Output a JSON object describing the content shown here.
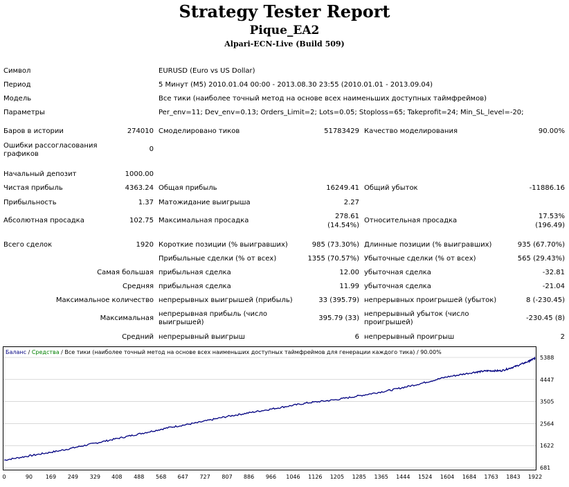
{
  "header": {
    "title": "Strategy Tester Report",
    "ea": "Pique_EA2",
    "server": "Alpari-ECN-Live (Build 509)"
  },
  "info": {
    "symbol_label": "Символ",
    "symbol_value": "EURUSD (Euro vs US Dollar)",
    "period_label": "Период",
    "period_value": "5 Минут (M5) 2010.01.04 00:00 - 2013.08.30 23:55 (2010.01.01 - 2013.09.04)",
    "model_label": "Модель",
    "model_value": "Все тики (наиболее точный метод на основе всех наименьших доступных таймфреймов)",
    "params_label": "Параметры",
    "params_value": "Per_env=11; Dev_env=0.13; Orders_Limit=2; Lots=0.05; Stoploss=65; Takeprofit=24; Min_SL_level=-20;"
  },
  "stats": {
    "bars_label": "Баров в истории",
    "bars_value": "274010",
    "ticks_label": "Смоделировано тиков",
    "ticks_value": "51783429",
    "quality_label": "Качество моделирования",
    "quality_value": "90.00%",
    "mismatch_label": "Ошибки рассогласования графиков",
    "mismatch_value": "0",
    "deposit_label": "Начальный депозит",
    "deposit_value": "1000.00",
    "net_label": "Чистая прибыль",
    "net_value": "4363.24",
    "gross_profit_label": "Общая прибыль",
    "gross_profit_value": "16249.41",
    "gross_loss_label": "Общий убыток",
    "gross_loss_value": "-11886.16",
    "pf_label": "Прибыльность",
    "pf_value": "1.37",
    "payoff_label": "Матожидание выигрыша",
    "payoff_value": "2.27",
    "abs_dd_label": "Абсолютная просадка",
    "abs_dd_value": "102.75",
    "max_dd_label": "Максимальная просадка",
    "max_dd_value1": "278.61",
    "max_dd_value2": "(14.54%)",
    "rel_dd_label": "Относительная просадка",
    "rel_dd_value1": "17.53%",
    "rel_dd_value2": "(196.49)",
    "total_label": "Всего сделок",
    "total_value": "1920",
    "short_label": "Короткие позиции (% выигравших)",
    "short_value": "985 (73.30%)",
    "long_label": "Длинные позиции (% выигравших)",
    "long_value": "935 (67.70%)",
    "profit_trades_label": "Прибыльные сделки (% от всех)",
    "profit_trades_value": "1355 (70.57%)",
    "loss_trades_label": "Убыточные сделки (% от всех)",
    "loss_trades_value": "565 (29.43%)",
    "largest_label": "Самая большая",
    "avg_label": "Средняя",
    "max_count_label": "Максимальное количество",
    "maximal_label": "Максимальная",
    "average_label": "Средний",
    "win_trade_label": "прибыльная сделка",
    "largest_win_value": "12.00",
    "avg_win_value": "11.99",
    "loss_trade_label": "убыточная сделка",
    "largest_loss_value": "-32.81",
    "avg_loss_value": "-21.04",
    "cons_wins_label": "непрерывных выигрышей (прибыль)",
    "cons_wins_value": "33 (395.79)",
    "cons_losses_label": "непрерывных проигрышей (убыток)",
    "cons_losses_value": "8 (-230.45)",
    "cons_profit_label": "непрерывная прибыль (число выигрышей)",
    "cons_profit_value": "395.79 (33)",
    "cons_loss_label": "непрерывный убыток (число проигрышей)",
    "cons_loss_value": "-230.45 (8)",
    "avg_wins_label": "непрерывный выигрыш",
    "avg_wins_value": "6",
    "avg_losses_label": "непрерывный проигрыш",
    "avg_losses_value": "2"
  },
  "chart_data": {
    "type": "line",
    "legend": {
      "balance": "Баланс",
      "sep1": " / ",
      "equity": "Средства",
      "sep2": " / ",
      "description": "Все тики (наиболее точный метод на основе всех наименьших доступных таймфреймов для генерации каждого тика) / 90.00%"
    },
    "x_ticks": [
      "0",
      "90",
      "169",
      "249",
      "329",
      "408",
      "488",
      "568",
      "647",
      "727",
      "807",
      "886",
      "966",
      "1046",
      "1126",
      "1205",
      "1285",
      "1365",
      "1444",
      "1524",
      "1604",
      "1684",
      "1763",
      "1843",
      "1922"
    ],
    "y_ticks": [
      "5388",
      "4447",
      "3505",
      "2564",
      "1622",
      "681"
    ],
    "xlim": [
      0,
      1922
    ],
    "ylim": [
      681,
      5388
    ],
    "series": [
      {
        "name": "Баланс",
        "color": "#000080",
        "x": [
          0,
          100,
          200,
          300,
          400,
          500,
          600,
          700,
          800,
          900,
          1000,
          1100,
          1200,
          1300,
          1400,
          1500,
          1600,
          1700,
          1750,
          1800,
          1850,
          1900,
          1922
        ],
        "y": [
          1000,
          1200,
          1400,
          1650,
          1900,
          2150,
          2400,
          2600,
          2850,
          3050,
          3250,
          3450,
          3580,
          3780,
          3990,
          4250,
          4550,
          4750,
          4820,
          4820,
          5000,
          5230,
          5363
        ]
      }
    ],
    "colors": {
      "balance": "#000080",
      "equity": "#008000",
      "grid": "#c0c0c0"
    }
  }
}
